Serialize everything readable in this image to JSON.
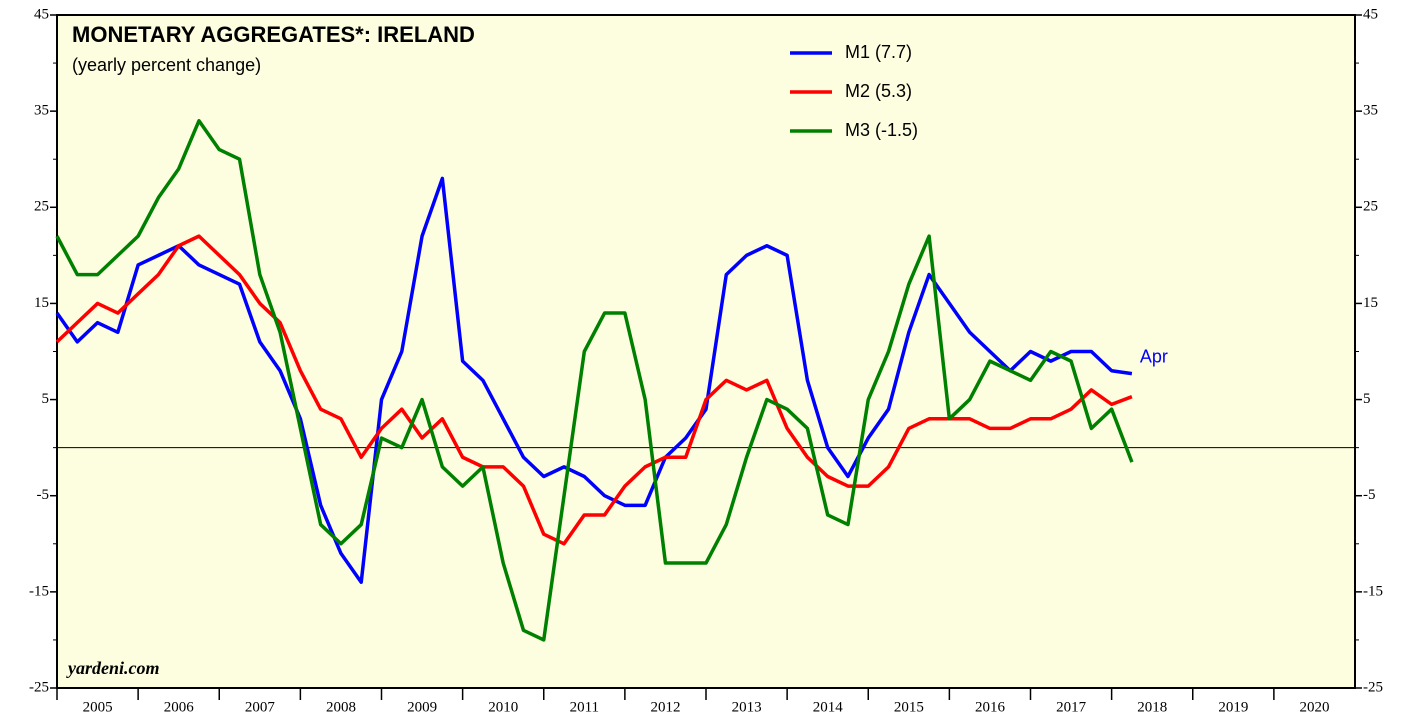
{
  "chart_data": {
    "type": "line",
    "title": "MONETARY AGGREGATES*: IRELAND",
    "subtitle": "(yearly percent change)",
    "source": "yardeni.com",
    "annotation": "Apr",
    "background": "#fdfde0",
    "xlim": [
      2005,
      2021
    ],
    "xticks": [
      {
        "value": 2005.5,
        "label": "2005"
      },
      {
        "value": 2006.5,
        "label": "2006"
      },
      {
        "value": 2007.5,
        "label": "2007"
      },
      {
        "value": 2008.5,
        "label": "2008"
      },
      {
        "value": 2009.5,
        "label": "2009"
      },
      {
        "value": 2010.5,
        "label": "2010"
      },
      {
        "value": 2011.5,
        "label": "2011"
      },
      {
        "value": 2012.5,
        "label": "2012"
      },
      {
        "value": 2013.5,
        "label": "2013"
      },
      {
        "value": 2014.5,
        "label": "2014"
      },
      {
        "value": 2015.5,
        "label": "2015"
      },
      {
        "value": 2016.5,
        "label": "2016"
      },
      {
        "value": 2017.5,
        "label": "2017"
      },
      {
        "value": 2018.5,
        "label": "2018"
      },
      {
        "value": 2019.5,
        "label": "2019"
      },
      {
        "value": 2020.5,
        "label": "2020"
      }
    ],
    "ylim": [
      -25,
      45
    ],
    "yticks": [
      -25,
      -15,
      -5,
      5,
      15,
      25,
      35,
      45
    ],
    "hline": 0,
    "x": [
      2005,
      2005.25,
      2005.5,
      2005.75,
      2006,
      2006.25,
      2006.5,
      2006.75,
      2007,
      2007.25,
      2007.5,
      2007.75,
      2008,
      2008.25,
      2008.5,
      2008.75,
      2009,
      2009.25,
      2009.5,
      2009.75,
      2010,
      2010.25,
      2010.5,
      2010.75,
      2011,
      2011.25,
      2011.5,
      2011.75,
      2012,
      2012.25,
      2012.5,
      2012.75,
      2013,
      2013.25,
      2013.5,
      2013.75,
      2014,
      2014.25,
      2014.5,
      2014.75,
      2015,
      2015.25,
      2015.5,
      2015.75,
      2016,
      2016.25,
      2016.5,
      2016.75,
      2017,
      2017.25,
      2017.5,
      2017.75,
      2018,
      2018.25
    ],
    "series": [
      {
        "name": "M1 (7.7)",
        "color": "#0000ff",
        "values": [
          14,
          11,
          13,
          12,
          19,
          20,
          21,
          19,
          18,
          17,
          11,
          8,
          3,
          -6,
          -11,
          -14,
          5,
          10,
          22,
          28,
          9,
          7,
          3,
          -1,
          -3,
          -2,
          -3,
          -5,
          -6,
          -6,
          -1,
          1,
          4,
          18,
          20,
          21,
          20,
          7,
          0,
          -3,
          1,
          4,
          12,
          18,
          15,
          12,
          10,
          8,
          10,
          9,
          10,
          10,
          8,
          7.7
        ]
      },
      {
        "name": "M2 (5.3)",
        "color": "#ff0000",
        "values": [
          11,
          13,
          15,
          14,
          16,
          18,
          21,
          22,
          20,
          18,
          15,
          13,
          8,
          4,
          3,
          -1,
          2,
          4,
          1,
          3,
          -1,
          -2,
          -2,
          -4,
          -9,
          -10,
          -7,
          -7,
          -4,
          -2,
          -1,
          -1,
          5,
          7,
          6,
          7,
          2,
          -1,
          -3,
          -4,
          -4,
          -2,
          2,
          3,
          3,
          3,
          2,
          2,
          3,
          3,
          4,
          6,
          4.5,
          5.3
        ]
      },
      {
        "name": "M3 (-1.5)",
        "color": "#008000",
        "values": [
          22,
          18,
          18,
          20,
          22,
          26,
          29,
          34,
          31,
          30,
          18,
          12,
          2,
          -8,
          -10,
          -8,
          1,
          0,
          5,
          -2,
          -4,
          -2,
          -12,
          -19,
          -20,
          -5,
          10,
          14,
          14,
          5,
          -12,
          -12,
          -12,
          -8,
          -1,
          5,
          4,
          2,
          -7,
          -8,
          5,
          10,
          17,
          22,
          3,
          5,
          9,
          8,
          7,
          10,
          9,
          2,
          4,
          -1.5
        ]
      }
    ]
  }
}
